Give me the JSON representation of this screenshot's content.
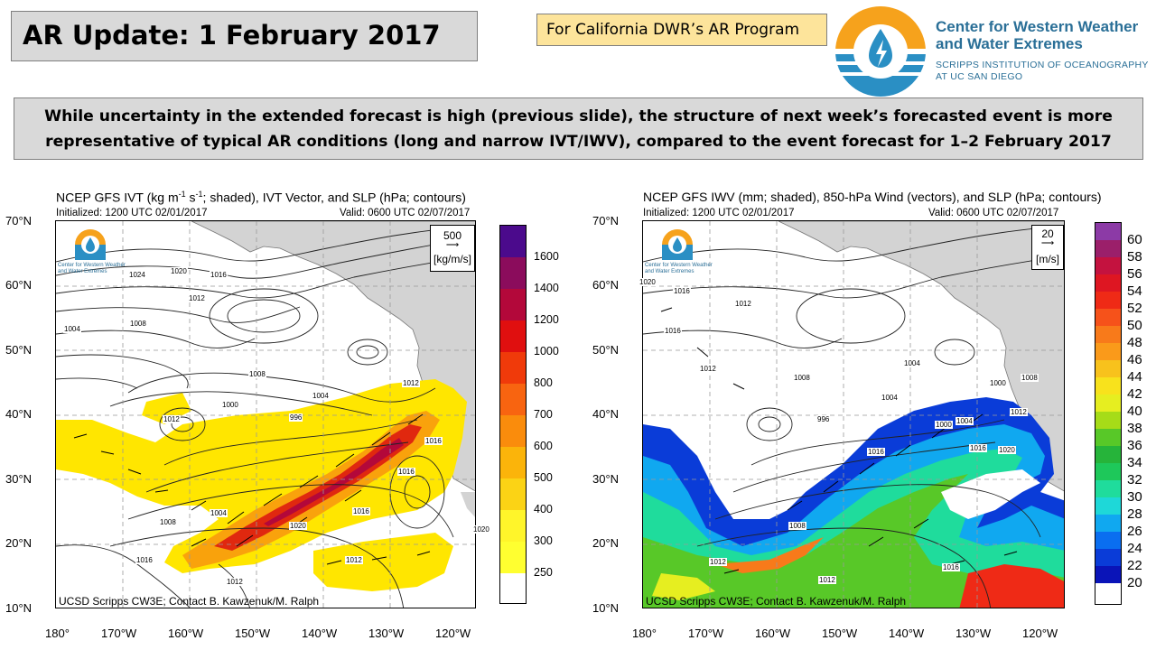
{
  "header": {
    "title": "AR Update: 1 February 2017",
    "program": "For California DWR’s AR Program",
    "org_name_line1": "Center for Western Weather",
    "org_name_line2": "and Water Extremes",
    "org_sub_line1": "SCRIPPS INSTITUTION OF OCEANOGRAPHY",
    "org_sub_line2": "AT UC SAN DIEGO"
  },
  "summary": {
    "line1": "While uncertainty in the extended forecast is high (previous slide), the structure of next week’s forecasted event is more",
    "line2": "representative of typical AR conditions (long and narrow IVT/IWV), compared to the event forecast for 1–2 February 2017"
  },
  "left_map": {
    "title": "NCEP GFS IVT (kg m",
    "title_sup1": "-1",
    "title_mid": " s",
    "title_sup2": "-1",
    "title_end": "; shaded), IVT Vector, and SLP (hPa; contours)",
    "initialized": "Initialized: 1200 UTC 02/01/2017",
    "valid": "Valid: 0600 UTC 02/07/2017",
    "vector_key_value": "500",
    "vector_key_units": "[kg/m/s]",
    "logo_text_1": "Center for Western Weather",
    "logo_text_2": "and Water Extremes",
    "credit": "UCSD Scripps CW3E; Contact B. Kawzenuk/M. Ralph",
    "colorbar_labels": [
      "1600",
      "1400",
      "1200",
      "1000",
      "800",
      "700",
      "600",
      "500",
      "400",
      "300",
      "250"
    ],
    "colorbar_colors": [
      "#4b0a8c",
      "#8b0c5c",
      "#b3083a",
      "#e00f0f",
      "#f03a0a",
      "#f86410",
      "#fa8c0c",
      "#fbb40a",
      "#fbd315",
      "#fff52a",
      "#ffff30",
      "#ffffff"
    ]
  },
  "right_map": {
    "title": "NCEP GFS IWV (mm; shaded), 850-hPa Wind (vectors), and SLP (hPa; contours)",
    "initialized": "Initialized: 1200 UTC 02/01/2017",
    "valid": "Valid: 0600 UTC 02/07/2017",
    "vector_key_value": "20",
    "vector_key_units": "[m/s]",
    "logo_text_1": "Center for Western Weather",
    "logo_text_2": "and Water Extremes",
    "credit": "UCSD Scripps CW3E; Contact B. Kawzenuk/M. Ralph",
    "colorbar_labels": [
      "60",
      "58",
      "56",
      "54",
      "52",
      "50",
      "48",
      "46",
      "44",
      "42",
      "40",
      "38",
      "36",
      "34",
      "32",
      "30",
      "28",
      "26",
      "24",
      "22",
      "20"
    ],
    "colorbar_colors": [
      "#8c3aa6",
      "#9b1f6a",
      "#c4123f",
      "#de1622",
      "#ef2a16",
      "#f6521a",
      "#f87a1a",
      "#fa9a1a",
      "#f8c21c",
      "#f8e21c",
      "#e6ee20",
      "#a6dc18",
      "#58c828",
      "#26b43a",
      "#1ec85a",
      "#1fdc9c",
      "#1ed8d8",
      "#10a8f0",
      "#0a6ef0",
      "#0a3cd8",
      "#0a14b8",
      "#ffffff"
    ]
  },
  "axes": {
    "lat_labels": [
      "70°N",
      "60°N",
      "50°N",
      "40°N",
      "30°N",
      "20°N",
      "10°N"
    ],
    "lon_labels": [
      "180°",
      "170°W",
      "160°W",
      "150°W",
      "140°W",
      "130°W",
      "120°W"
    ]
  },
  "slp_labels_left": [
    "1024",
    "1020",
    "1016",
    "1012",
    "1008",
    "1004",
    "1000",
    "996",
    "1004",
    "1008",
    "1012",
    "1016",
    "1020",
    "1004",
    "1008",
    "1016",
    "1012",
    "1016",
    "1012",
    "1016",
    "1012",
    "1020"
  ],
  "slp_labels_right": [
    "1020",
    "1016",
    "1012",
    "1016",
    "1012",
    "1008",
    "1004",
    "1000",
    "996",
    "1004",
    "1008",
    "1012",
    "1016",
    "1020",
    "1016",
    "1008",
    "1012",
    "1016",
    "1012",
    "1000",
    "1004"
  ]
}
